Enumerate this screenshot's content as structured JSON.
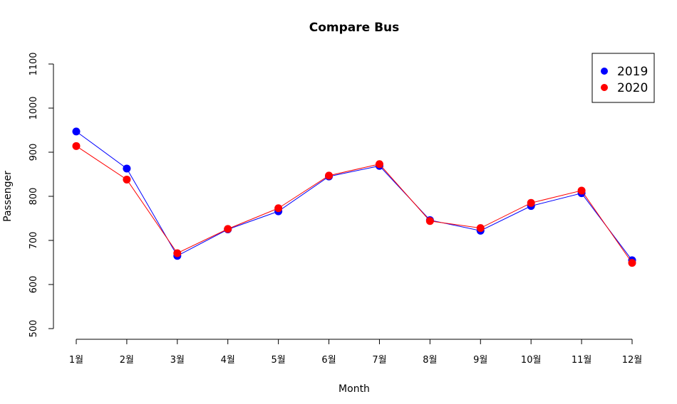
{
  "chart_data": {
    "type": "line",
    "title": "Compare Bus",
    "xlabel": "Month",
    "ylabel": "Passenger",
    "categories": [
      "1월",
      "2월",
      "3월",
      "4월",
      "5월",
      "6월",
      "7월",
      "8월",
      "9월",
      "10월",
      "11월",
      "12월"
    ],
    "y_ticks": [
      500,
      600,
      700,
      800,
      900,
      1000,
      1100
    ],
    "ylim": [
      500,
      1100
    ],
    "grid": false,
    "legend_position": "top-right",
    "series": [
      {
        "name": "2019",
        "color": "#0000ff",
        "values": [
          947,
          863,
          665,
          725,
          766,
          845,
          869,
          746,
          722,
          778,
          807,
          655
        ]
      },
      {
        "name": "2020",
        "color": "#ff0000",
        "values": [
          914,
          838,
          671,
          726,
          773,
          847,
          873,
          744,
          728,
          785,
          813,
          649
        ]
      }
    ]
  }
}
